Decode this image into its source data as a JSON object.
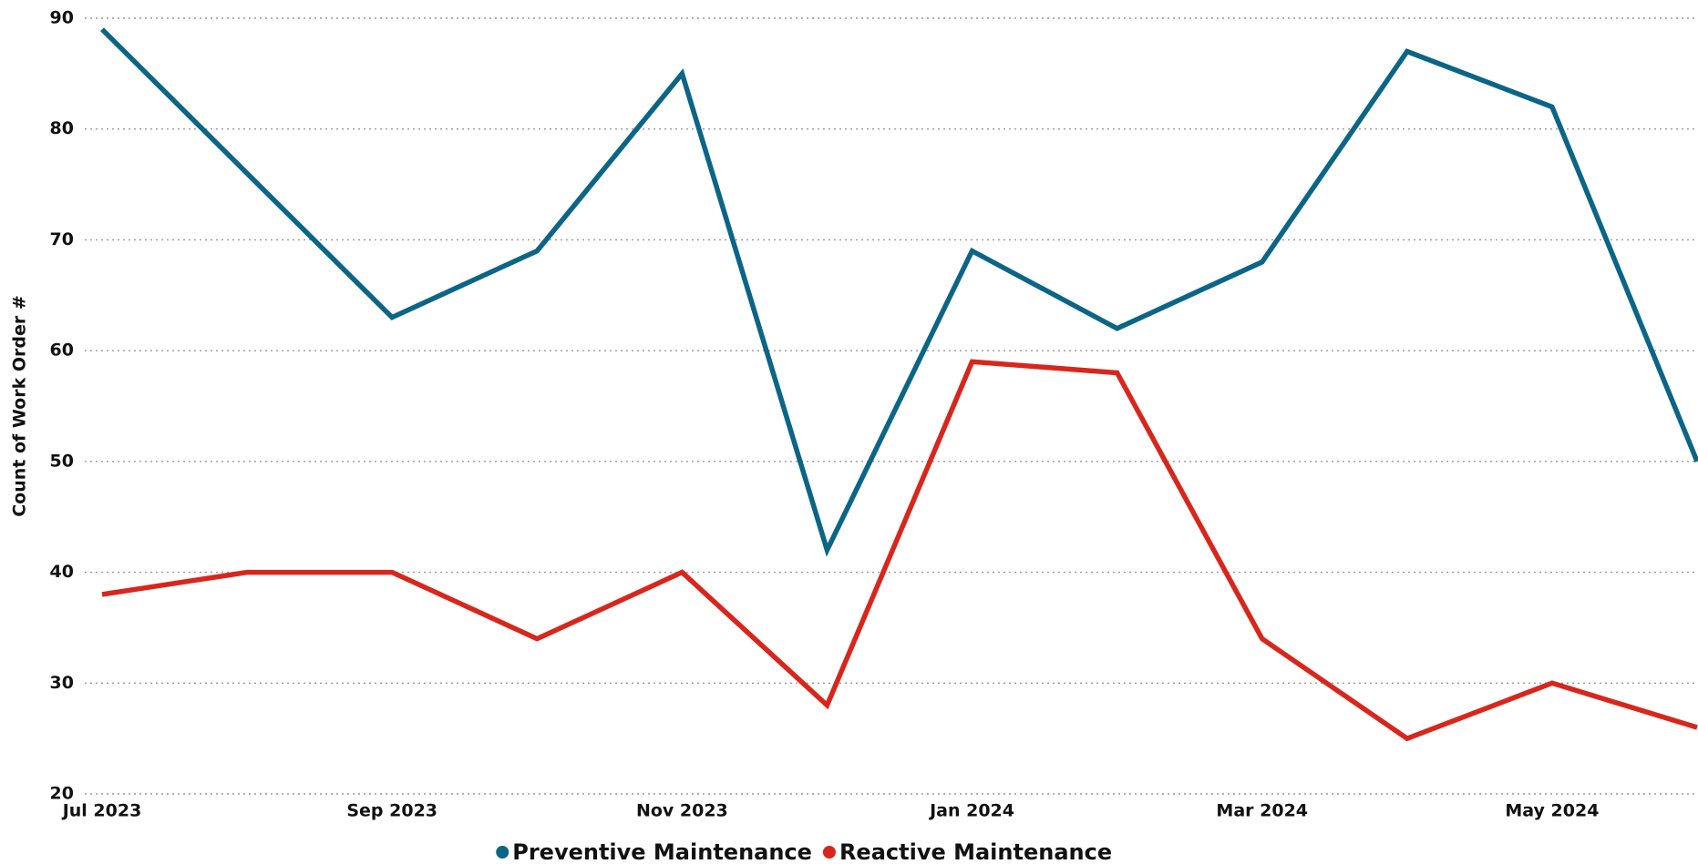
{
  "chart_data": {
    "type": "line",
    "y_label": "Count of Work Order #",
    "categories": [
      "Jul 2023",
      null,
      "Sep 2023",
      null,
      "Nov 2023",
      null,
      "Jan 2024",
      null,
      "Mar 2024",
      null,
      "May 2024",
      null
    ],
    "series": [
      {
        "name": "Preventive Maintenance",
        "color": "#0b6586",
        "values": [
          89,
          76,
          63,
          69,
          85,
          42,
          69,
          62,
          68,
          87,
          82,
          50
        ]
      },
      {
        "name": "Reactive Maintenance",
        "color": "#d9261c",
        "values": [
          38,
          40,
          40,
          34,
          40,
          28,
          59,
          58,
          34,
          25,
          30,
          26
        ]
      }
    ],
    "ylim": [
      20,
      90
    ],
    "yticks": [
      20,
      30,
      40,
      50,
      60,
      70,
      80,
      90
    ],
    "grid": true,
    "legend": "bottom"
  }
}
